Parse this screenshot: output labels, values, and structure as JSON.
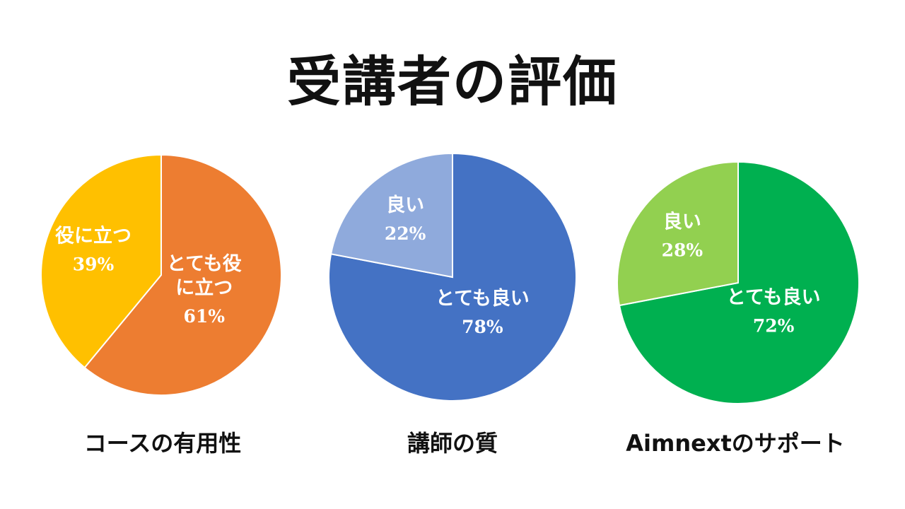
{
  "title": "受講者の評価",
  "chart_data": [
    {
      "type": "pie",
      "caption": "コースの有用性",
      "slices": [
        {
          "label_lines": [
            "とても役",
            "に立つ"
          ],
          "value": 61,
          "value_text": "61%",
          "color": "#ED7D31"
        },
        {
          "label_lines": [
            "役に立つ"
          ],
          "value": 39,
          "value_text": "39%",
          "color": "#FFC000"
        }
      ]
    },
    {
      "type": "pie",
      "caption": "講師の質",
      "slices": [
        {
          "label_lines": [
            "とても良い"
          ],
          "value": 78,
          "value_text": "78%",
          "color": "#4472C4"
        },
        {
          "label_lines": [
            "良い"
          ],
          "value": 22,
          "value_text": "22%",
          "color": "#8FAADC"
        }
      ]
    },
    {
      "type": "pie",
      "caption": "Aimnextのサポート",
      "slices": [
        {
          "label_lines": [
            "とても良い"
          ],
          "value": 72,
          "value_text": "72%",
          "color": "#00B050"
        },
        {
          "label_lines": [
            "良い"
          ],
          "value": 28,
          "value_text": "28%",
          "color": "#92D050"
        }
      ]
    }
  ]
}
